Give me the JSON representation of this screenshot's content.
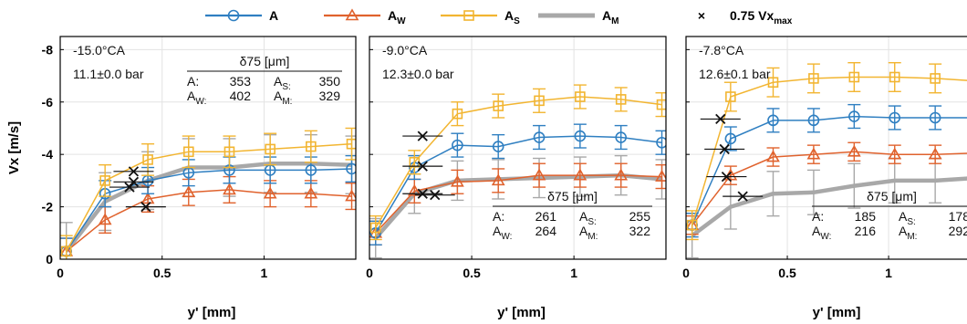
{
  "legend": {
    "items": [
      {
        "key": "A",
        "label": "A",
        "sub": "",
        "color": "#2f7fc1",
        "marker": "circle"
      },
      {
        "key": "AW",
        "label": "A",
        "sub": "W",
        "color": "#e0622d",
        "marker": "triangle"
      },
      {
        "key": "AS",
        "label": "A",
        "sub": "S",
        "color": "#f2b531",
        "marker": "square"
      },
      {
        "key": "AM",
        "label": "A",
        "sub": "M",
        "color": "#a8a8a8",
        "marker": "none"
      }
    ],
    "cross": {
      "symbol": "×",
      "label": "0.75 Vx",
      "sub": "max"
    }
  },
  "chart_data": [
    {
      "type": "line",
      "xlabel": "y' [mm]",
      "ylabel": "Vx [m/s]",
      "xlim": [
        0,
        1.45
      ],
      "ylim": [
        0,
        -8.5
      ],
      "xticks": [
        0,
        0.5,
        1
      ],
      "xticklabels": [
        "0",
        "0.5",
        "1"
      ],
      "yticks": [
        0,
        -2,
        -4,
        -6,
        -8
      ],
      "yticklabels": [
        "0",
        "-2",
        "-4",
        "-6",
        "-8"
      ],
      "grid": true,
      "annotation": {
        "cad": "-15.0°CA",
        "pressure": "11.1±0.0 bar",
        "table_title": "δ75 [μm]",
        "row1": [
          "A:",
          "353",
          "AS:",
          "350"
        ],
        "row2": [
          "AW:",
          "402",
          "AM:",
          "329"
        ]
      },
      "x": [
        0.03,
        0.22,
        0.43,
        0.63,
        0.83,
        1.03,
        1.23,
        1.43
      ],
      "series": [
        {
          "name": "A",
          "values": [
            -0.3,
            -2.5,
            -3.0,
            -3.3,
            -3.4,
            -3.4,
            -3.4,
            -3.45
          ],
          "err": 0.5
        },
        {
          "name": "AW",
          "values": [
            -0.3,
            -1.5,
            -2.3,
            -2.55,
            -2.65,
            -2.5,
            -2.5,
            -2.4
          ],
          "err": 0.5
        },
        {
          "name": "AS",
          "values": [
            -0.3,
            -3.0,
            -3.8,
            -4.1,
            -4.1,
            -4.2,
            -4.3,
            -4.4
          ],
          "err": 0.6
        },
        {
          "name": "AM",
          "values": [
            -0.3,
            -2.2,
            -3.0,
            -3.5,
            -3.5,
            -3.65,
            -3.65,
            -3.6
          ],
          "err": 1.1
        }
      ],
      "crosses": [
        {
          "series": "A",
          "x": 0.36,
          "y": -2.95
        },
        {
          "series": "AW",
          "x": 0.42,
          "y": -2.0
        },
        {
          "series": "AS",
          "x": 0.36,
          "y": -3.35
        },
        {
          "series": "AM",
          "x": 0.34,
          "y": -2.75
        }
      ]
    },
    {
      "type": "line",
      "xlabel": "y' [mm]",
      "ylabel": "",
      "xlim": [
        0,
        1.45
      ],
      "ylim": [
        0,
        -8.5
      ],
      "xticks": [
        0,
        0.5,
        1
      ],
      "xticklabels": [
        "0",
        "0.5",
        "1"
      ],
      "yticks": [
        0,
        -2,
        -4,
        -6,
        -8
      ],
      "yticklabels": [],
      "grid": true,
      "annotation": {
        "cad": "-9.0°CA",
        "pressure": "12.3±0.0 bar",
        "table_title": "δ75 [μm]",
        "row1": [
          "A:",
          "261",
          "AS:",
          "255"
        ],
        "row2": [
          "AW:",
          "264",
          "AM:",
          "322"
        ]
      },
      "x": [
        0.03,
        0.22,
        0.43,
        0.63,
        0.83,
        1.03,
        1.23,
        1.43
      ],
      "series": [
        {
          "name": "A",
          "values": [
            -1.0,
            -3.5,
            -4.35,
            -4.3,
            -4.65,
            -4.7,
            -4.65,
            -4.45
          ],
          "err": 0.45
        },
        {
          "name": "AW",
          "values": [
            -1.0,
            -2.6,
            -2.95,
            -3.0,
            -3.2,
            -3.2,
            -3.2,
            -3.15
          ],
          "err": 0.45
        },
        {
          "name": "AS",
          "values": [
            -1.2,
            -3.7,
            -5.55,
            -5.85,
            -6.05,
            -6.2,
            -6.1,
            -5.9
          ],
          "err": 0.45
        },
        {
          "name": "AM",
          "values": [
            -0.8,
            -2.5,
            -3.0,
            -3.05,
            -3.1,
            -3.15,
            -3.2,
            -3.05
          ],
          "err": 0.75
        }
      ],
      "crosses": [
        {
          "series": "A",
          "x": 0.26,
          "y": -3.55
        },
        {
          "series": "AW",
          "x": 0.26,
          "y": -2.5
        },
        {
          "series": "AS",
          "x": 0.26,
          "y": -4.7
        },
        {
          "series": "AM",
          "x": 0.32,
          "y": -2.45
        }
      ]
    },
    {
      "type": "line",
      "xlabel": "y' [mm]",
      "ylabel": "",
      "xlim": [
        0,
        1.45
      ],
      "ylim": [
        0,
        -8.5
      ],
      "xticks": [
        0,
        0.5,
        1
      ],
      "xticklabels": [
        "0",
        "0.5",
        "1"
      ],
      "yticks": [
        0,
        -2,
        -4,
        -6,
        -8
      ],
      "yticklabels": [],
      "grid": true,
      "annotation": {
        "cad": "-7.8°CA",
        "pressure": "12.6±0.1 bar",
        "table_title": "δ75 [μm]",
        "row1": [
          "A:",
          "185",
          "AS:",
          "178"
        ],
        "row2": [
          "AW:",
          "216",
          "AM:",
          "292"
        ]
      },
      "x": [
        0.03,
        0.22,
        0.43,
        0.63,
        0.83,
        1.03,
        1.23,
        1.43
      ],
      "series": [
        {
          "name": "A",
          "values": [
            -1.3,
            -4.6,
            -5.3,
            -5.3,
            -5.45,
            -5.4,
            -5.4,
            -5.4
          ],
          "err": 0.45
        },
        {
          "name": "AW",
          "values": [
            -1.3,
            -3.2,
            -3.9,
            -4.0,
            -4.1,
            -4.0,
            -4.0,
            -4.05
          ],
          "err": 0.35
        },
        {
          "name": "AS",
          "values": [
            -1.3,
            -6.2,
            -6.75,
            -6.9,
            -6.95,
            -6.95,
            -6.9,
            -6.8
          ],
          "err": 0.55
        },
        {
          "name": "AM",
          "values": [
            -0.9,
            -2.0,
            -2.5,
            -2.55,
            -2.8,
            -3.0,
            -3.0,
            -3.1
          ],
          "err": 0.85
        }
      ],
      "crosses": [
        {
          "series": "A",
          "x": 0.19,
          "y": -4.2
        },
        {
          "series": "AW",
          "x": 0.2,
          "y": -3.15
        },
        {
          "series": "AS",
          "x": 0.17,
          "y": -5.35
        },
        {
          "series": "AM",
          "x": 0.28,
          "y": -2.4
        }
      ]
    }
  ]
}
